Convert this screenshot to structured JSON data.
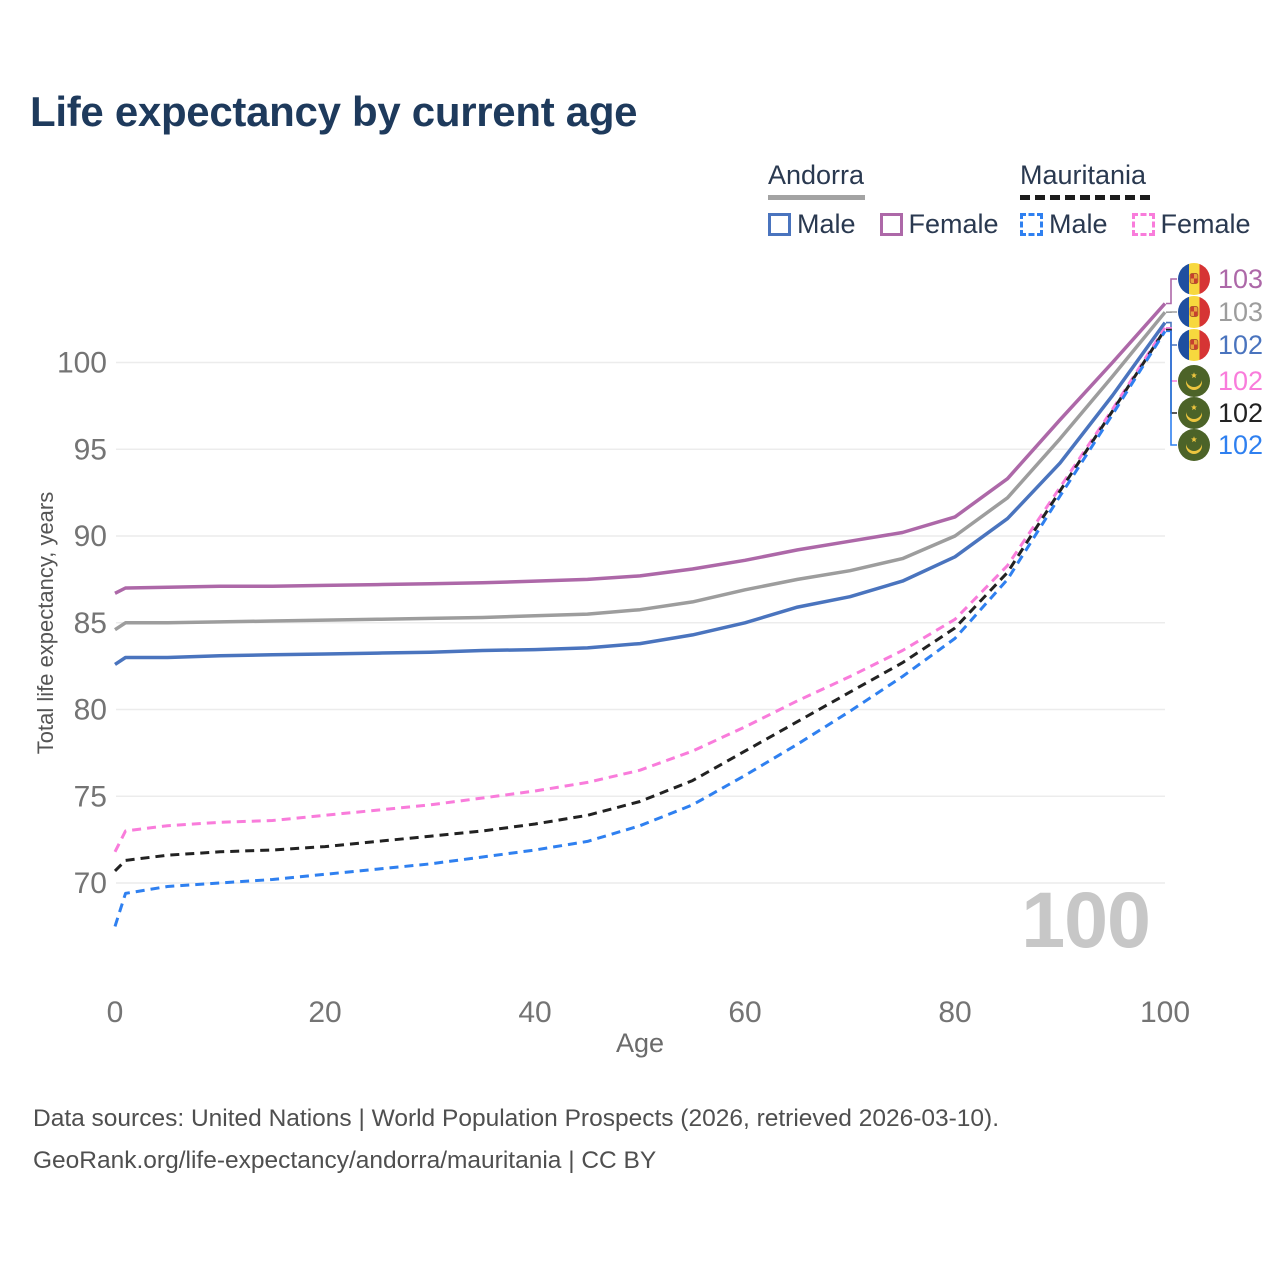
{
  "page": {
    "title": "Life expectancy by current age"
  },
  "legend": {
    "groups": [
      {
        "country": "Andorra",
        "line_style": "solid",
        "line_color": "#a3a3a3",
        "items": [
          {
            "label": "Male",
            "color": "#4a74be",
            "line_style": "solid"
          },
          {
            "label": "Female",
            "color": "#ad68a8",
            "line_style": "solid"
          }
        ]
      },
      {
        "country": "Mauritania",
        "line_style": "dashed",
        "line_color": "#1c1c1c",
        "items": [
          {
            "label": "Male",
            "color": "#2f80f0",
            "line_style": "dashed"
          },
          {
            "label": "Female",
            "color": "#f97cdb",
            "line_style": "dashed"
          }
        ]
      }
    ]
  },
  "chart_data": {
    "type": "line",
    "title": "Life expectancy by current age",
    "xlabel": "Age",
    "ylabel": "Total life expectancy, years",
    "x_ticks": [
      0,
      20,
      40,
      60,
      80,
      100
    ],
    "y_ticks": [
      70,
      75,
      80,
      85,
      90,
      95,
      100
    ],
    "xlim": [
      0,
      100
    ],
    "ylim": [
      67,
      104
    ],
    "grid": "horizontal",
    "legend_position": "top-right",
    "watermark": "100",
    "ages": [
      0,
      1,
      5,
      10,
      15,
      20,
      25,
      30,
      35,
      40,
      45,
      50,
      55,
      60,
      65,
      70,
      75,
      80,
      85,
      90,
      95,
      100
    ],
    "series": [
      {
        "name": "Andorra Female",
        "country": "Andorra",
        "sex": "Female",
        "flag": "ad",
        "color": "#ad68a8",
        "line_style": "solid",
        "end_label": "103",
        "values": [
          86.7,
          87.0,
          87.05,
          87.1,
          87.1,
          87.15,
          87.2,
          87.25,
          87.3,
          87.4,
          87.5,
          87.7,
          88.1,
          88.6,
          89.2,
          89.7,
          90.2,
          91.1,
          93.3,
          96.7,
          100.0,
          103.4
        ]
      },
      {
        "name": "Andorra Both sexes",
        "country": "Andorra",
        "sex": "Both sexes",
        "flag": "ad",
        "color": "#9d9d9d",
        "line_style": "solid",
        "end_label": "103",
        "values": [
          84.6,
          85.0,
          85.0,
          85.05,
          85.1,
          85.15,
          85.2,
          85.25,
          85.3,
          85.4,
          85.5,
          85.75,
          86.2,
          86.9,
          87.5,
          88.0,
          88.7,
          90.0,
          92.2,
          95.6,
          99.2,
          102.9
        ]
      },
      {
        "name": "Andorra Male",
        "country": "Andorra",
        "sex": "Male",
        "flag": "ad",
        "color": "#4a74be",
        "line_style": "solid",
        "end_label": "102",
        "values": [
          82.6,
          83.0,
          83.0,
          83.1,
          83.15,
          83.2,
          83.25,
          83.3,
          83.4,
          83.45,
          83.55,
          83.8,
          84.3,
          85.0,
          85.9,
          86.5,
          87.4,
          88.8,
          91.0,
          94.2,
          98.1,
          102.3
        ]
      },
      {
        "name": "Mauritania Female",
        "country": "Mauritania",
        "sex": "Female",
        "flag": "mr",
        "color": "#f97cdb",
        "line_style": "dashed",
        "end_label": "102",
        "values": [
          71.8,
          73.0,
          73.3,
          73.5,
          73.6,
          73.9,
          74.2,
          74.5,
          74.9,
          75.3,
          75.8,
          76.5,
          77.6,
          79.0,
          80.5,
          81.9,
          83.4,
          85.2,
          88.3,
          92.8,
          97.3,
          102.0
        ]
      },
      {
        "name": "Mauritania Both sexes",
        "country": "Mauritania",
        "sex": "Both sexes",
        "flag": "mr",
        "color": "#222222",
        "line_style": "dashed",
        "end_label": "102",
        "values": [
          70.7,
          71.3,
          71.6,
          71.8,
          71.9,
          72.1,
          72.4,
          72.7,
          73.0,
          73.4,
          73.9,
          74.7,
          75.9,
          77.6,
          79.3,
          81.0,
          82.7,
          84.7,
          87.9,
          92.6,
          97.2,
          101.9
        ]
      },
      {
        "name": "Mauritania Male",
        "country": "Mauritania",
        "sex": "Male",
        "flag": "mr",
        "color": "#2f80f0",
        "line_style": "dashed",
        "end_label": "102",
        "values": [
          67.5,
          69.4,
          69.8,
          70.0,
          70.2,
          70.5,
          70.8,
          71.1,
          71.5,
          71.9,
          72.4,
          73.3,
          74.5,
          76.2,
          78.0,
          79.9,
          81.9,
          84.1,
          87.5,
          92.3,
          97.0,
          101.8
        ]
      }
    ]
  },
  "footer": {
    "line1": "Data sources: United Nations | World Population Prospects (2026, retrieved 2026-03-10).",
    "line2": "GeoRank.org/life-expectancy/andorra/mauritania | CC BY"
  }
}
